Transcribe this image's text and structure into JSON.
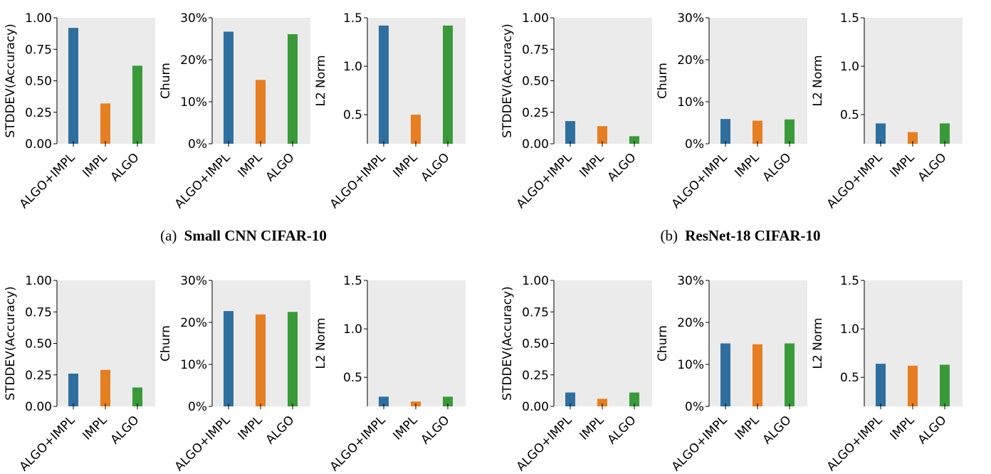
{
  "colors": {
    "panel_bg": "#ebebeb",
    "series": [
      "#2f6f9f",
      "#e67e22",
      "#3a9a3a"
    ]
  },
  "captions": [
    {
      "prefix": "(a)",
      "title": "Small CNN CIFAR-10"
    },
    {
      "prefix": "(b)",
      "title": "ResNet-18 CIFAR-10"
    }
  ],
  "chart_data": [
    {
      "type": "bar",
      "group": "Small CNN CIFAR-10",
      "ylabel": "STDDEV(Accuracy)",
      "categories": [
        "ALGO+IMPL",
        "IMPL",
        "ALGO"
      ],
      "values": [
        0.92,
        0.32,
        0.62
      ],
      "ylim": [
        0,
        1
      ],
      "yticks": [
        "0.00",
        "0.25",
        "0.50",
        "0.75",
        "1.00"
      ]
    },
    {
      "type": "bar",
      "group": "Small CNN CIFAR-10",
      "ylabel": "Churn",
      "categories": [
        "ALGO+IMPL",
        "IMPL",
        "ALGO"
      ],
      "values": [
        26.7,
        15.2,
        26.1
      ],
      "ylim": [
        0,
        30
      ],
      "yticks": [
        "0%",
        "10%",
        "20%",
        "30%"
      ]
    },
    {
      "type": "bar",
      "group": "Small CNN CIFAR-10",
      "ylabel": "L2 Norm",
      "categories": [
        "ALGO+IMPL",
        "IMPL",
        "ALGO"
      ],
      "values": [
        1.42,
        0.5,
        1.42
      ],
      "ylim": [
        0.2,
        1.5
      ],
      "yticks": [
        "0.5",
        "1.0",
        "1.5"
      ]
    },
    {
      "type": "bar",
      "group": "ResNet-18 CIFAR-10",
      "ylabel": "STDDEV(Accuracy)",
      "categories": [
        "ALGO+IMPL",
        "IMPL",
        "ALGO"
      ],
      "values": [
        0.18,
        0.14,
        0.06
      ],
      "ylim": [
        0,
        1
      ],
      "yticks": [
        "0.00",
        "0.25",
        "0.50",
        "0.75",
        "1.00"
      ]
    },
    {
      "type": "bar",
      "group": "ResNet-18 CIFAR-10",
      "ylabel": "Churn",
      "categories": [
        "ALGO+IMPL",
        "IMPL",
        "ALGO"
      ],
      "values": [
        5.9,
        5.5,
        5.8
      ],
      "ylim": [
        0,
        30
      ],
      "yticks": [
        "0%",
        "10%",
        "20%",
        "30%"
      ]
    },
    {
      "type": "bar",
      "group": "ResNet-18 CIFAR-10",
      "ylabel": "L2 Norm",
      "categories": [
        "ALGO+IMPL",
        "IMPL",
        "ALGO"
      ],
      "values": [
        0.41,
        0.32,
        0.41
      ],
      "ylim": [
        0.2,
        1.5
      ],
      "yticks": [
        "0.5",
        "1.0",
        "1.5"
      ]
    },
    {
      "type": "bar",
      "ylabel": "STDDEV(Accuracy)",
      "categories": [
        "ALGO+IMPL",
        "IMPL",
        "ALGO"
      ],
      "values": [
        0.26,
        0.29,
        0.15
      ],
      "ylim": [
        0,
        1
      ],
      "yticks": [
        "0.00",
        "0.25",
        "0.50",
        "0.75",
        "1.00"
      ]
    },
    {
      "type": "bar",
      "ylabel": "Churn",
      "categories": [
        "ALGO+IMPL",
        "IMPL",
        "ALGO"
      ],
      "values": [
        22.7,
        21.9,
        22.5
      ],
      "ylim": [
        0,
        30
      ],
      "yticks": [
        "0%",
        "10%",
        "20%",
        "30%"
      ]
    },
    {
      "type": "bar",
      "ylabel": "L2 Norm",
      "categories": [
        "ALGO+IMPL",
        "IMPL",
        "ALGO"
      ],
      "values": [
        0.3,
        0.25,
        0.3
      ],
      "ylim": [
        0.2,
        1.5
      ],
      "yticks": [
        "0.5",
        "1.0",
        "1.5"
      ]
    },
    {
      "type": "bar",
      "ylabel": "STDDEV(Accuracy)",
      "categories": [
        "ALGO+IMPL",
        "IMPL",
        "ALGO"
      ],
      "values": [
        0.11,
        0.06,
        0.11
      ],
      "ylim": [
        0,
        1
      ],
      "yticks": [
        "0.00",
        "0.25",
        "0.50",
        "0.75",
        "1.00"
      ]
    },
    {
      "type": "bar",
      "ylabel": "Churn",
      "categories": [
        "ALGO+IMPL",
        "IMPL",
        "ALGO"
      ],
      "values": [
        15.0,
        14.8,
        15.0
      ],
      "ylim": [
        0,
        30
      ],
      "yticks": [
        "0%",
        "10%",
        "20%",
        "30%"
      ]
    },
    {
      "type": "bar",
      "ylabel": "L2 Norm",
      "categories": [
        "ALGO+IMPL",
        "IMPL",
        "ALGO"
      ],
      "values": [
        0.64,
        0.62,
        0.63
      ],
      "ylim": [
        0.2,
        1.5
      ],
      "yticks": [
        "0.5",
        "1.0",
        "1.5"
      ]
    }
  ]
}
